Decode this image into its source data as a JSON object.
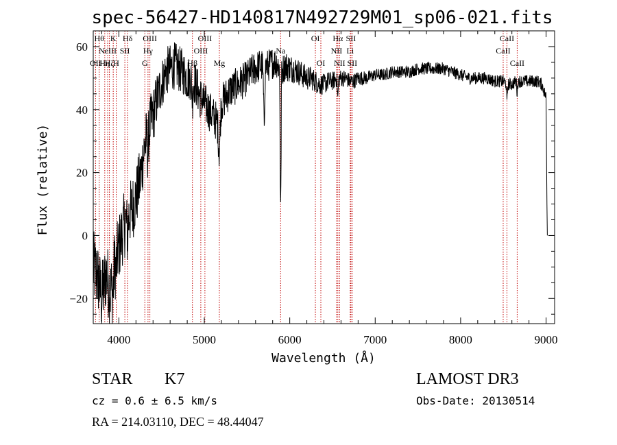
{
  "chart_data": {
    "type": "line",
    "title": "spec-56427-HD140817N492729M01_sp06-021.fits",
    "xlabel": "Wavelength (Å)",
    "ylabel": "Flux (relative)",
    "xlim": [
      3700,
      9100
    ],
    "ylim": [
      -28,
      65
    ],
    "xticks": [
      4000,
      5000,
      6000,
      7000,
      8000,
      9000
    ],
    "yticks": [
      -20,
      0,
      20,
      40,
      60
    ],
    "continuum": [
      [
        3700,
        -10
      ],
      [
        3760,
        -14
      ],
      [
        3800,
        -20
      ],
      [
        3850,
        -12
      ],
      [
        3900,
        -18
      ],
      [
        3950,
        -8
      ],
      [
        4000,
        -4
      ],
      [
        4050,
        2
      ],
      [
        4100,
        6
      ],
      [
        4150,
        8
      ],
      [
        4200,
        12
      ],
      [
        4250,
        18
      ],
      [
        4300,
        28
      ],
      [
        4350,
        34
      ],
      [
        4400,
        38
      ],
      [
        4450,
        44
      ],
      [
        4500,
        48
      ],
      [
        4550,
        52
      ],
      [
        4600,
        53
      ],
      [
        4650,
        54
      ],
      [
        4700,
        53
      ],
      [
        4750,
        52
      ],
      [
        4800,
        50
      ],
      [
        4850,
        50
      ],
      [
        4900,
        48
      ],
      [
        4950,
        44
      ],
      [
        5000,
        42
      ],
      [
        5050,
        40
      ],
      [
        5100,
        38
      ],
      [
        5150,
        36
      ],
      [
        5200,
        42
      ],
      [
        5250,
        44
      ],
      [
        5300,
        46
      ],
      [
        5350,
        47
      ],
      [
        5400,
        48
      ],
      [
        5450,
        49
      ],
      [
        5500,
        50
      ],
      [
        5550,
        52
      ],
      [
        5600,
        53
      ],
      [
        5650,
        54
      ],
      [
        5700,
        54
      ],
      [
        5750,
        54
      ],
      [
        5800,
        55
      ],
      [
        5850,
        55
      ],
      [
        5900,
        52
      ],
      [
        5950,
        54
      ],
      [
        6000,
        53
      ],
      [
        6050,
        53
      ],
      [
        6100,
        52
      ],
      [
        6150,
        51
      ],
      [
        6200,
        50
      ],
      [
        6250,
        50
      ],
      [
        6300,
        49
      ],
      [
        6350,
        48
      ],
      [
        6400,
        48
      ],
      [
        6450,
        49
      ],
      [
        6500,
        49
      ],
      [
        6550,
        50
      ],
      [
        6600,
        50
      ],
      [
        6650,
        50
      ],
      [
        6700,
        49
      ],
      [
        6750,
        49
      ],
      [
        6800,
        50
      ],
      [
        6900,
        50
      ],
      [
        7000,
        51
      ],
      [
        7100,
        51
      ],
      [
        7200,
        52
      ],
      [
        7300,
        52
      ],
      [
        7400,
        52
      ],
      [
        7500,
        53
      ],
      [
        7600,
        53
      ],
      [
        7700,
        53
      ],
      [
        7800,
        53
      ],
      [
        7900,
        52
      ],
      [
        8000,
        51
      ],
      [
        8100,
        50
      ],
      [
        8200,
        50
      ],
      [
        8300,
        50
      ],
      [
        8400,
        49
      ],
      [
        8500,
        49
      ],
      [
        8550,
        48
      ],
      [
        8600,
        48
      ],
      [
        8650,
        49
      ],
      [
        8700,
        49
      ],
      [
        8800,
        49
      ],
      [
        8900,
        49
      ],
      [
        8950,
        48
      ],
      [
        9000,
        44
      ]
    ],
    "noise": [
      [
        3700,
        12
      ],
      [
        4300,
        10
      ],
      [
        4500,
        8
      ],
      [
        5300,
        6
      ],
      [
        5900,
        5
      ],
      [
        6500,
        3
      ],
      [
        7000,
        2
      ],
      [
        9000,
        2
      ]
    ],
    "dips": [
      [
        3930,
        -6,
        14
      ],
      [
        3968,
        -4,
        12
      ],
      [
        4101,
        -6,
        10
      ],
      [
        4340,
        -6,
        10
      ],
      [
        4861,
        -6,
        10
      ],
      [
        5175,
        -12,
        14
      ],
      [
        5700,
        -18,
        10
      ],
      [
        5890,
        -28,
        6
      ],
      [
        5896,
        -30,
        5
      ],
      [
        6563,
        -6,
        8
      ],
      [
        8542,
        -6,
        6
      ],
      [
        8662,
        -4,
        6
      ]
    ],
    "end_flux": [
      [
        9000,
        44
      ],
      [
        9010,
        10
      ],
      [
        9015,
        0
      ]
    ],
    "lines": [
      {
        "wl": 3727,
        "label": "OII",
        "row": "bot"
      },
      {
        "wl": 3770,
        "label": "Hθ",
        "row": "top"
      },
      {
        "wl": 3835,
        "label": "Hη",
        "row": "bot"
      },
      {
        "wl": 3869,
        "label": "NeIII",
        "row": "mid"
      },
      {
        "wl": 3889,
        "label": "Hζ",
        "row": "bot"
      },
      {
        "wl": 3934,
        "label": "K",
        "row": "top"
      },
      {
        "wl": 3969,
        "label": "H",
        "row": "bot"
      },
      {
        "wl": 4070,
        "label": "SII",
        "row": "mid"
      },
      {
        "wl": 4102,
        "label": "Hδ",
        "row": "top"
      },
      {
        "wl": 4304,
        "label": "G",
        "row": "bot"
      },
      {
        "wl": 4341,
        "label": "Hγ",
        "row": "mid"
      },
      {
        "wl": 4363,
        "label": "OIII",
        "row": "top"
      },
      {
        "wl": 4861,
        "label": "Hβ",
        "row": "bot"
      },
      {
        "wl": 4959,
        "label": "OIII",
        "row": "mid"
      },
      {
        "wl": 5007,
        "label": "OIII",
        "row": "top"
      },
      {
        "wl": 5176,
        "label": "Mg",
        "row": "bot"
      },
      {
        "wl": 5893,
        "label": "Na",
        "row": "mid"
      },
      {
        "wl": 6300,
        "label": "OI",
        "row": "top"
      },
      {
        "wl": 6364,
        "label": "OI",
        "row": "bot"
      },
      {
        "wl": 6548,
        "label": "NII",
        "row": "mid"
      },
      {
        "wl": 6563,
        "label": "Hα",
        "row": "top"
      },
      {
        "wl": 6583,
        "label": "NII",
        "row": "bot"
      },
      {
        "wl": 6708,
        "label": "Li",
        "row": "mid"
      },
      {
        "wl": 6716,
        "label": "SII",
        "row": "top"
      },
      {
        "wl": 6731,
        "label": "SII",
        "row": "bot"
      },
      {
        "wl": 8498,
        "label": "CaII",
        "row": "mid"
      },
      {
        "wl": 8542,
        "label": "CaII",
        "row": "top"
      },
      {
        "wl": 8662,
        "label": "CaII",
        "row": "bot"
      }
    ]
  },
  "info": {
    "class_label": "STAR",
    "subclass": "K7",
    "cz": "cz = 0.6 ± 6.5 km/s",
    "radec": "RA = 214.03110, DEC =  48.44047",
    "survey": "LAMOST DR3",
    "obs_date": "Obs-Date: 20130514"
  },
  "colors": {
    "line_marker": "#c00000",
    "spectrum": "#000000"
  }
}
